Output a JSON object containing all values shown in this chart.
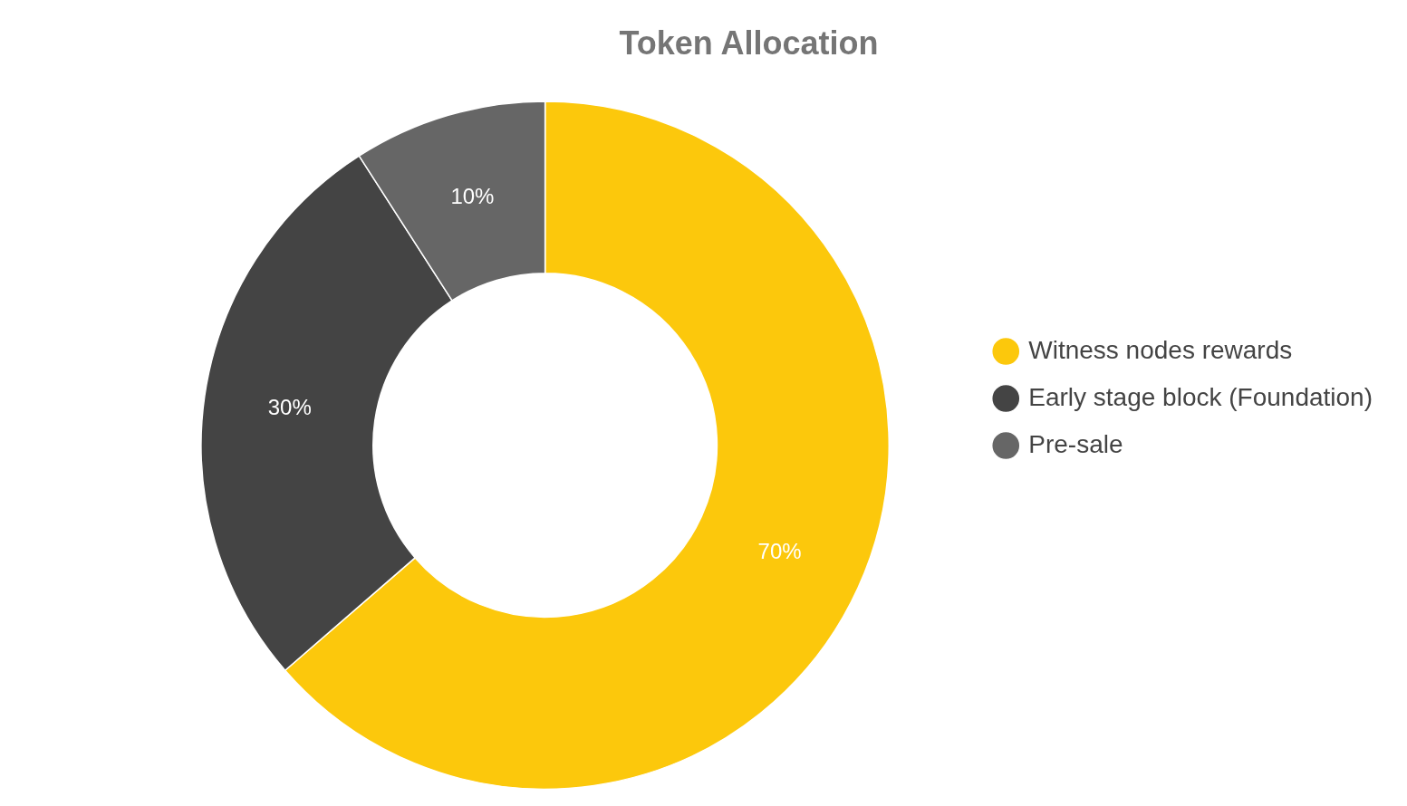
{
  "chart_data": {
    "type": "donut",
    "title": "Token Allocation",
    "categories": [
      "Witness nodes rewards",
      "Early stage block (Foundation)",
      "Pre-sale"
    ],
    "values": [
      70,
      30,
      10
    ],
    "colors": [
      "#fcc80c",
      "#444444",
      "#666666"
    ],
    "value_labels": [
      "70%",
      "30%",
      "10%"
    ],
    "legend": "right"
  }
}
